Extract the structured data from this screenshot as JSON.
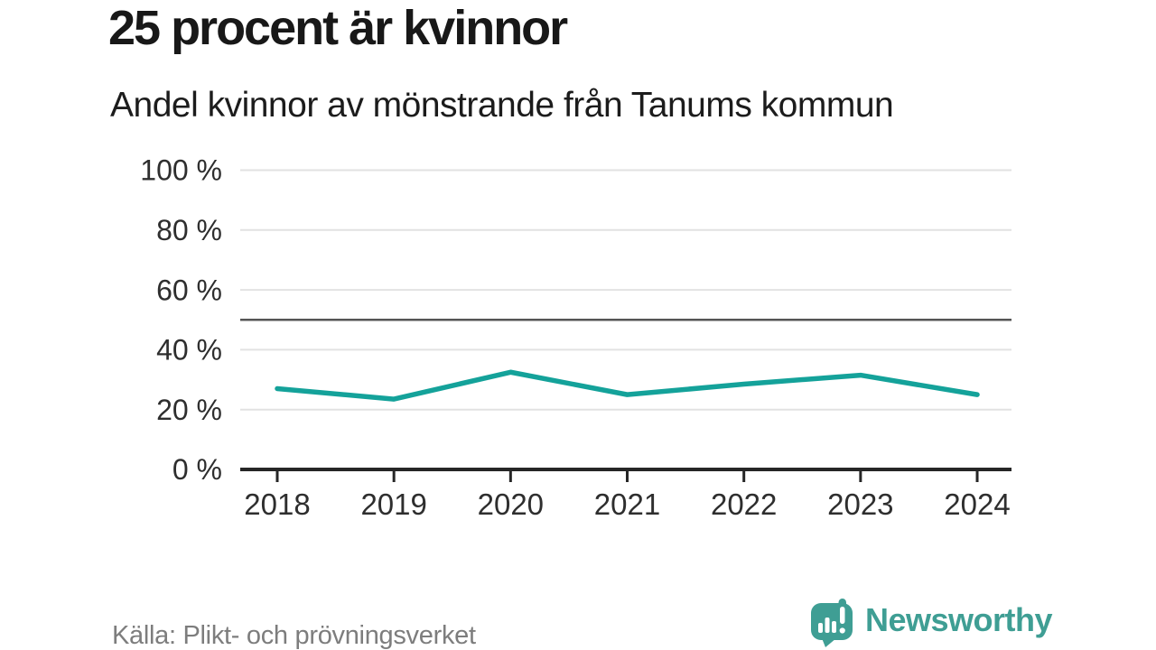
{
  "header": {
    "title": "25 procent är kvinnor",
    "subtitle": "Andel kvinnor av mönstrande från Tanums kommun"
  },
  "footer": {
    "source": "Källa: Plikt- och prövningsverket",
    "brand": "Newsworthy"
  },
  "colors": {
    "line": "#14a29a",
    "brand_teal": "#3f9e94",
    "grid": "#e2e2e2",
    "reference_line": "#555555",
    "axis": "#262626",
    "axis_text": "#2e2e2e",
    "source_text": "#7d7d7d"
  },
  "icons": {
    "brand_icon": "newsworthy-speech-bubble-bar-chart-icon"
  },
  "chart_data": {
    "type": "line",
    "title": "25 procent är kvinnor",
    "subtitle": "Andel kvinnor av mönstrande från Tanums kommun",
    "x": [
      2018,
      2019,
      2020,
      2021,
      2022,
      2023,
      2024
    ],
    "series": [
      {
        "name": "Andel kvinnor av mönstrande",
        "values": [
          27,
          23.5,
          32.5,
          25,
          28.5,
          31.5,
          25
        ]
      }
    ],
    "unit": "%",
    "yticks": [
      0,
      20,
      40,
      60,
      80,
      100
    ],
    "ytick_labels": [
      "0 %",
      "20 %",
      "40 %",
      "60 %",
      "80 %",
      "100 %"
    ],
    "ylim": [
      0,
      100
    ],
    "reference_line": 50,
    "grid": true,
    "legend": false,
    "xlabel": "",
    "ylabel": ""
  }
}
